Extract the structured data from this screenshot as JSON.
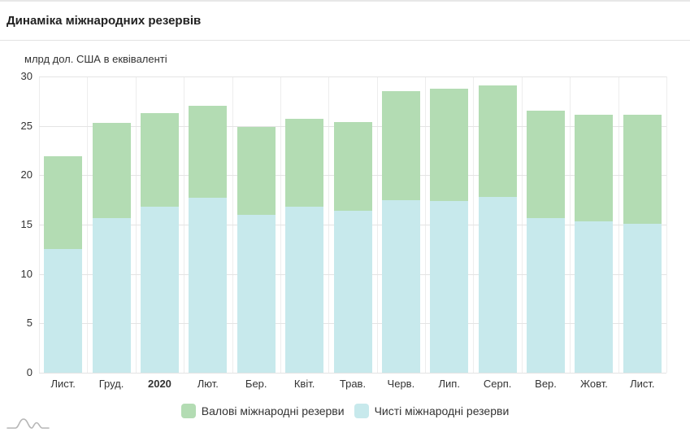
{
  "header": {
    "title": "Динаміка міжнародних резервів"
  },
  "chart_data": {
    "type": "bar",
    "title": "Динаміка міжнародних резервів",
    "unit_label": "млрд дол. США в еквіваленті",
    "categories": [
      "Лист.",
      "Груд.",
      "2020",
      "Лют.",
      "Бер.",
      "Квіт.",
      "Трав.",
      "Черв.",
      "Лип.",
      "Серп.",
      "Вер.",
      "Жовт.",
      "Лист."
    ],
    "bold_category": "2020",
    "series": [
      {
        "name": "Валові міжнародні резерви",
        "color": "#b3dcb3",
        "values": [
          21.9,
          25.3,
          26.3,
          27.0,
          24.9,
          25.7,
          25.4,
          28.5,
          28.8,
          29.1,
          26.5,
          26.1,
          26.1
        ]
      },
      {
        "name": "Чисті міжнародні резерви",
        "color": "#c7e9ec",
        "values": [
          12.5,
          15.7,
          16.8,
          17.7,
          16.0,
          16.8,
          16.4,
          17.5,
          17.4,
          17.8,
          15.7,
          15.3,
          15.1
        ]
      }
    ],
    "ylim": [
      0,
      30
    ],
    "yticks": [
      0,
      5,
      10,
      15,
      20,
      25,
      30
    ],
    "grid": true,
    "legend_position": "bottom",
    "bar_style": "overlapping"
  },
  "colors": {
    "grid_horizontal": "#e4e4e4",
    "grid_vertical": "#ededed",
    "axis_text": "#333333",
    "title_text": "#212121",
    "icon_gray": "#b6b6b6"
  }
}
